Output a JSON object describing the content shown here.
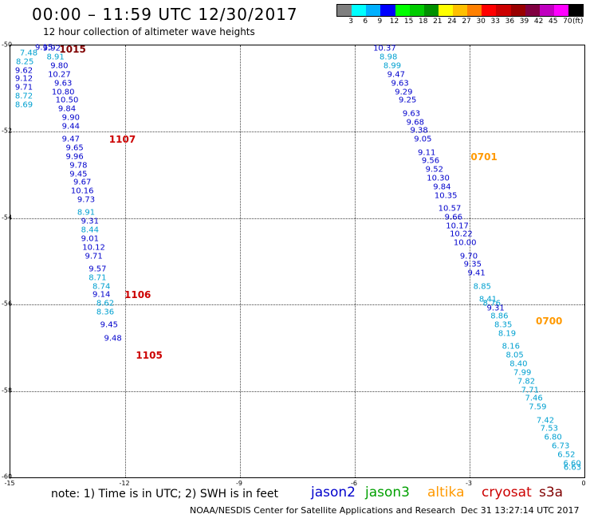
{
  "header": {
    "title": "00:00 – 11:59 UTC 12/30/2017",
    "subtitle": "12 hour collection of altimeter wave heights"
  },
  "colorbar": {
    "colors": [
      "#7f7f7f",
      "#00ffff",
      "#00b0ff",
      "#0000ff",
      "#00ff00",
      "#00cc00",
      "#009000",
      "#ffff00",
      "#ffc000",
      "#ff8000",
      "#ff0000",
      "#cc0000",
      "#990000",
      "#800040",
      "#c000c0",
      "#ff00ff",
      "#000000"
    ],
    "labels": [
      "3",
      "6",
      "9",
      "12",
      "15",
      "18",
      "21",
      "24",
      "27",
      "30",
      "33",
      "36",
      "39",
      "42",
      "45",
      "70"
    ],
    "unit": "(ft)"
  },
  "axes": {
    "xlim": [
      -15,
      0
    ],
    "ylim": [
      -60,
      -50
    ],
    "x_ticks": [
      "-15",
      "-12",
      "-9",
      "-6",
      "-3",
      "0"
    ],
    "y_ticks": [
      "-50",
      "-52",
      "-54",
      "-56",
      "-58",
      "-60"
    ]
  },
  "colors": {
    "jason2": "#0000cc",
    "jason3": "#00a000",
    "altika": "#ff9900",
    "cryosat": "#cc0000",
    "s3a": "#800000",
    "altSwh": "#00a0d0"
  },
  "time_labels": [
    {
      "text": "1015",
      "color": "#800000",
      "lon": -13.7,
      "lat": -50.0
    },
    {
      "text": "1107",
      "color": "#cc0000",
      "lon": -12.4,
      "lat": -52.2
    },
    {
      "text": "1106",
      "color": "#cc0000",
      "lon": -12.0,
      "lat": -55.8
    },
    {
      "text": "1105",
      "color": "#cc0000",
      "lon": -11.7,
      "lat": -57.2
    },
    {
      "text": "0701",
      "color": "#ff9900",
      "lon": -2.95,
      "lat": -52.6
    },
    {
      "text": "0700",
      "color": "#ff9900",
      "lon": -1.25,
      "lat": -56.4
    }
  ],
  "wave_heights_track1": [
    {
      "v": "9.15",
      "lon": -14.1,
      "lat": -50.0,
      "c": "dark"
    },
    {
      "v": "7.48",
      "lon": -14.5,
      "lat": -50.2,
      "c": "light"
    },
    {
      "v": "9.92",
      "lon": -13.9,
      "lat": -50.1,
      "c": "dark"
    },
    {
      "v": "8.25",
      "lon": -14.6,
      "lat": -50.4,
      "c": "light"
    },
    {
      "v": "8.91",
      "lon": -13.8,
      "lat": -50.3,
      "c": "light"
    },
    {
      "v": "9.62",
      "lon": -14.8,
      "lat": -50.6,
      "c": "dark"
    },
    {
      "v": "9.80",
      "lon": -13.7,
      "lat": -50.5,
      "c": "dark"
    },
    {
      "v": "9.12",
      "lon": -14.9,
      "lat": -50.8,
      "c": "dark"
    },
    {
      "v": "10.27",
      "lon": -13.7,
      "lat": -50.7,
      "c": "dark"
    },
    {
      "v": "9.71",
      "lon": -15.0,
      "lat": -51.0,
      "c": "dark"
    },
    {
      "v": "9.63",
      "lon": -13.6,
      "lat": -50.9,
      "c": "dark"
    },
    {
      "v": "8.72",
      "lon": -15.1,
      "lat": -51.2,
      "c": "light"
    },
    {
      "v": "10.80",
      "lon": -13.6,
      "lat": -51.1,
      "c": "dark"
    },
    {
      "v": "8.69",
      "lon": -15.2,
      "lat": -51.4,
      "c": "light"
    },
    {
      "v": "10.50",
      "lon": -13.5,
      "lat": -51.3,
      "c": "dark"
    },
    {
      "v": "9.84",
      "lon": -13.5,
      "lat": -51.5,
      "c": "dark"
    },
    {
      "v": "9.90",
      "lon": -13.4,
      "lat": -51.7,
      "c": "dark"
    },
    {
      "v": "9.44",
      "lon": -13.4,
      "lat": -51.9,
      "c": "dark"
    },
    {
      "v": "9.47",
      "lon": -13.4,
      "lat": -52.2,
      "c": "dark"
    },
    {
      "v": "9.65",
      "lon": -13.3,
      "lat": -52.4,
      "c": "dark"
    },
    {
      "v": "9.96",
      "lon": -13.3,
      "lat": -52.6,
      "c": "dark"
    },
    {
      "v": "9.78",
      "lon": -13.2,
      "lat": -52.8,
      "c": "dark"
    },
    {
      "v": "9.45",
      "lon": -13.2,
      "lat": -53.0,
      "c": "dark"
    },
    {
      "v": "9.67",
      "lon": -13.1,
      "lat": -53.2,
      "c": "dark"
    },
    {
      "v": "10.16",
      "lon": -13.1,
      "lat": -53.4,
      "c": "dark"
    },
    {
      "v": "9.73",
      "lon": -13.0,
      "lat": -53.6,
      "c": "dark"
    },
    {
      "v": "8.91",
      "lon": -13.0,
      "lat": -53.9,
      "c": "light"
    },
    {
      "v": "9.31",
      "lon": -12.9,
      "lat": -54.1,
      "c": "dark"
    },
    {
      "v": "8.44",
      "lon": -12.9,
      "lat": -54.3,
      "c": "light"
    },
    {
      "v": "9.01",
      "lon": -12.9,
      "lat": -54.5,
      "c": "dark"
    },
    {
      "v": "10.12",
      "lon": -12.8,
      "lat": -54.7,
      "c": "dark"
    },
    {
      "v": "9.71",
      "lon": -12.8,
      "lat": -54.9,
      "c": "dark"
    },
    {
      "v": "9.57",
      "lon": -12.7,
      "lat": -55.2,
      "c": "dark"
    },
    {
      "v": "8.71",
      "lon": -12.7,
      "lat": -55.4,
      "c": "light"
    },
    {
      "v": "8.74",
      "lon": -12.6,
      "lat": -55.6,
      "c": "light"
    },
    {
      "v": "9.14",
      "lon": -12.6,
      "lat": -55.8,
      "c": "dark"
    },
    {
      "v": "8.62",
      "lon": -12.5,
      "lat": -56.0,
      "c": "light"
    },
    {
      "v": "8.36",
      "lon": -12.5,
      "lat": -56.2,
      "c": "light"
    },
    {
      "v": "9.45",
      "lon": -12.4,
      "lat": -56.5,
      "c": "dark"
    },
    {
      "v": "9.48",
      "lon": -12.3,
      "lat": -56.8,
      "c": "dark"
    }
  ],
  "wave_heights_track2": [
    {
      "v": "10.37",
      "lon": -5.2,
      "lat": -50.1,
      "c": "dark"
    },
    {
      "v": "8.98",
      "lon": -5.1,
      "lat": -50.3,
      "c": "light"
    },
    {
      "v": "8.99",
      "lon": -5.0,
      "lat": -50.5,
      "c": "light"
    },
    {
      "v": "9.47",
      "lon": -4.9,
      "lat": -50.7,
      "c": "dark"
    },
    {
      "v": "9.63",
      "lon": -4.8,
      "lat": -50.9,
      "c": "dark"
    },
    {
      "v": "9.29",
      "lon": -4.7,
      "lat": -51.1,
      "c": "dark"
    },
    {
      "v": "9.25",
      "lon": -4.6,
      "lat": -51.3,
      "c": "dark"
    },
    {
      "v": "9.63",
      "lon": -4.5,
      "lat": -51.6,
      "c": "dark"
    },
    {
      "v": "9.68",
      "lon": -4.4,
      "lat": -51.8,
      "c": "dark"
    },
    {
      "v": "9.38",
      "lon": -4.3,
      "lat": -52.0,
      "c": "dark"
    },
    {
      "v": "9.05",
      "lon": -4.2,
      "lat": -52.2,
      "c": "dark"
    },
    {
      "v": "9.11",
      "lon": -4.1,
      "lat": -52.5,
      "c": "dark"
    },
    {
      "v": "9.56",
      "lon": -4.0,
      "lat": -52.7,
      "c": "dark"
    },
    {
      "v": "9.52",
      "lon": -3.9,
      "lat": -52.9,
      "c": "dark"
    },
    {
      "v": "10.30",
      "lon": -3.8,
      "lat": -53.1,
      "c": "dark"
    },
    {
      "v": "9.84",
      "lon": -3.7,
      "lat": -53.3,
      "c": "dark"
    },
    {
      "v": "10.35",
      "lon": -3.6,
      "lat": -53.5,
      "c": "dark"
    },
    {
      "v": "10.57",
      "lon": -3.5,
      "lat": -53.8,
      "c": "dark"
    },
    {
      "v": "9.66",
      "lon": -3.4,
      "lat": -54.0,
      "c": "dark"
    },
    {
      "v": "10.17",
      "lon": -3.3,
      "lat": -54.2,
      "c": "dark"
    },
    {
      "v": "10.22",
      "lon": -3.2,
      "lat": -54.4,
      "c": "dark"
    },
    {
      "v": "10.00",
      "lon": -3.1,
      "lat": -54.6,
      "c": "dark"
    },
    {
      "v": "9.70",
      "lon": -3.0,
      "lat": -54.9,
      "c": "dark"
    },
    {
      "v": "9.35",
      "lon": -2.9,
      "lat": -55.1,
      "c": "dark"
    },
    {
      "v": "9.41",
      "lon": -2.8,
      "lat": -55.3,
      "c": "dark"
    },
    {
      "v": "8.85",
      "lon": -2.65,
      "lat": -55.6,
      "c": "light"
    },
    {
      "v": "8.41",
      "lon": -2.5,
      "lat": -55.9,
      "c": "light"
    },
    {
      "v": "8.76",
      "lon": -2.4,
      "lat": -56.0,
      "c": "light"
    },
    {
      "v": "9.31",
      "lon": -2.3,
      "lat": -56.1,
      "c": "dark"
    },
    {
      "v": "8.86",
      "lon": -2.2,
      "lat": -56.3,
      "c": "light"
    },
    {
      "v": "8.35",
      "lon": -2.1,
      "lat": -56.5,
      "c": "light"
    },
    {
      "v": "8.19",
      "lon": -2.0,
      "lat": -56.7,
      "c": "light"
    },
    {
      "v": "8.16",
      "lon": -1.9,
      "lat": -57.0,
      "c": "light"
    },
    {
      "v": "8.05",
      "lon": -1.8,
      "lat": -57.2,
      "c": "light"
    },
    {
      "v": "8.40",
      "lon": -1.7,
      "lat": -57.4,
      "c": "light"
    },
    {
      "v": "7.99",
      "lon": -1.6,
      "lat": -57.6,
      "c": "light"
    },
    {
      "v": "7.82",
      "lon": -1.5,
      "lat": -57.8,
      "c": "light"
    },
    {
      "v": "7.71",
      "lon": -1.4,
      "lat": -58.0,
      "c": "light"
    },
    {
      "v": "7.46",
      "lon": -1.3,
      "lat": -58.2,
      "c": "light"
    },
    {
      "v": "7.59",
      "lon": -1.2,
      "lat": -58.4,
      "c": "light"
    },
    {
      "v": "7.42",
      "lon": -1.0,
      "lat": -58.7,
      "c": "light"
    },
    {
      "v": "7.53",
      "lon": -0.9,
      "lat": -58.9,
      "c": "light"
    },
    {
      "v": "6.80",
      "lon": -0.8,
      "lat": -59.1,
      "c": "light"
    },
    {
      "v": "6.73",
      "lon": -0.6,
      "lat": -59.3,
      "c": "light"
    },
    {
      "v": "6.52",
      "lon": -0.45,
      "lat": -59.5,
      "c": "light"
    },
    {
      "v": "6.60",
      "lon": -0.3,
      "lat": -59.7,
      "c": "light"
    },
    {
      "v": "6.63",
      "lon": -0.15,
      "lat": -59.8,
      "c": "light"
    }
  ],
  "footer": {
    "note": "note: 1) Time is in UTC; 2) SWH is in feet",
    "legend": [
      {
        "name": "jason2",
        "color": "#0000cc"
      },
      {
        "name": "jason3",
        "color": "#00a000"
      },
      {
        "name": "altika",
        "color": "#ff9900"
      },
      {
        "name": "cryosat",
        "color": "#cc0000"
      },
      {
        "name": "s3a",
        "color": "#800000"
      }
    ],
    "credit": "NOAA/NESDIS Center for Satellite Applications and Research",
    "timestamp": "Dec 31 13:27:14 UTC 2017"
  }
}
